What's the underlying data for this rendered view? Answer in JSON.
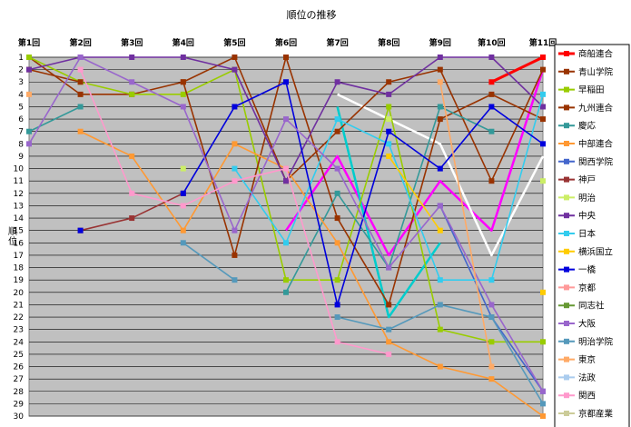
{
  "chart_data": {
    "type": "line",
    "title": "順位の推移",
    "ylabel": "順位",
    "xlabel": "",
    "categories": [
      "第1回",
      "第2回",
      "第3回",
      "第4回",
      "第5回",
      "第6回",
      "第7回",
      "第8回",
      "第9回",
      "第10回",
      "第11回"
    ],
    "ylim": [
      1,
      30
    ],
    "y_reversed": true,
    "grid": true,
    "legend_position": "right",
    "plot_background": "#c0c0c0",
    "series": [
      {
        "name": "商船連合",
        "color": "#ff0000",
        "values": [
          null,
          null,
          null,
          null,
          null,
          null,
          null,
          null,
          null,
          3,
          1
        ]
      },
      {
        "name": "青山学院",
        "color": "#993300",
        "values": [
          1,
          4,
          4,
          3,
          1,
          11,
          7,
          3,
          2,
          11,
          2
        ]
      },
      {
        "name": "早稲田",
        "color": "#99cc00",
        "values": [
          1,
          3,
          4,
          4,
          2,
          19,
          19,
          5,
          23,
          24,
          24
        ]
      },
      {
        "name": "九州連合",
        "color": "#993300",
        "values": [
          2,
          3,
          null,
          3,
          17,
          1,
          14,
          21,
          6,
          4,
          6
        ]
      },
      {
        "name": "慶応",
        "color": "#339999",
        "values": [
          7,
          5,
          null,
          null,
          null,
          20,
          12,
          18,
          5,
          7,
          null
        ]
      },
      {
        "name": "中部連合",
        "color": "#ff9933",
        "values": [
          null,
          7,
          9,
          15,
          8,
          10,
          16,
          24,
          26,
          27,
          30
        ]
      },
      {
        "name": "関西学院",
        "color": "#4466cc",
        "values": [
          null,
          null,
          null,
          null,
          null,
          null,
          null,
          null,
          13,
          22,
          28
        ]
      },
      {
        "name": "神戸",
        "color": "#993333",
        "values": [
          null,
          15,
          14,
          12,
          null,
          null,
          null,
          null,
          null,
          null,
          null
        ]
      },
      {
        "name": "明治",
        "color": "#ccee66",
        "values": [
          null,
          null,
          null,
          10,
          null,
          null,
          null,
          6,
          null,
          null,
          11
        ]
      },
      {
        "name": "中央",
        "color": "#7030a0",
        "values": [
          2,
          1,
          1,
          1,
          2,
          11,
          3,
          4,
          1,
          1,
          5
        ]
      },
      {
        "name": "日本",
        "color": "#33ccee",
        "values": [
          null,
          null,
          null,
          null,
          10,
          16,
          6,
          8,
          19,
          19,
          4
        ]
      },
      {
        "name": "横浜国立",
        "color": "#ffcc00",
        "values": [
          null,
          null,
          null,
          null,
          null,
          null,
          null,
          9,
          15,
          null,
          20
        ]
      },
      {
        "name": "一橋",
        "color": "#0000dd",
        "values": [
          null,
          15,
          null,
          12,
          5,
          3,
          21,
          7,
          10,
          5,
          8
        ]
      },
      {
        "name": "京都",
        "color": "#ff9999",
        "values": [
          null,
          null,
          null,
          null,
          null,
          null,
          null,
          null,
          null,
          null,
          null
        ]
      },
      {
        "name": "同志社",
        "color": "#669933",
        "values": [
          null,
          null,
          null,
          null,
          null,
          null,
          null,
          null,
          null,
          null,
          null
        ]
      },
      {
        "name": "大阪",
        "color": "#9966cc",
        "values": [
          8,
          1,
          3,
          5,
          15,
          6,
          10,
          18,
          13,
          21,
          28
        ]
      },
      {
        "name": "明治学院",
        "color": "#5599bb",
        "values": [
          null,
          null,
          null,
          16,
          19,
          null,
          22,
          23,
          21,
          22,
          29
        ]
      },
      {
        "name": "東京",
        "color": "#ffaa66",
        "values": [
          4,
          null,
          null,
          null,
          null,
          null,
          null,
          null,
          3,
          26,
          null
        ]
      },
      {
        "name": "法政",
        "color": "#aaccee",
        "values": [
          null,
          null,
          null,
          null,
          null,
          null,
          null,
          null,
          null,
          null,
          null
        ]
      },
      {
        "name": "関西",
        "color": "#ff99cc",
        "values": [
          null,
          2,
          12,
          13,
          11,
          10,
          24,
          25,
          null,
          null,
          null
        ]
      },
      {
        "name": "京都産業",
        "color": "#cccc99",
        "values": [
          null,
          null,
          null,
          null,
          null,
          null,
          null,
          null,
          null,
          null,
          null
        ]
      }
    ],
    "extra_lines": [
      {
        "color": "#ff00ff",
        "values": [
          null,
          null,
          null,
          null,
          null,
          15,
          9,
          17,
          11,
          15,
          2
        ]
      },
      {
        "color": "#ffffff",
        "values": [
          null,
          null,
          null,
          null,
          null,
          null,
          4,
          6,
          8,
          17,
          9
        ]
      },
      {
        "color": "#00cccc",
        "values": [
          null,
          null,
          null,
          null,
          null,
          null,
          5,
          22,
          16,
          null,
          null
        ]
      }
    ]
  }
}
